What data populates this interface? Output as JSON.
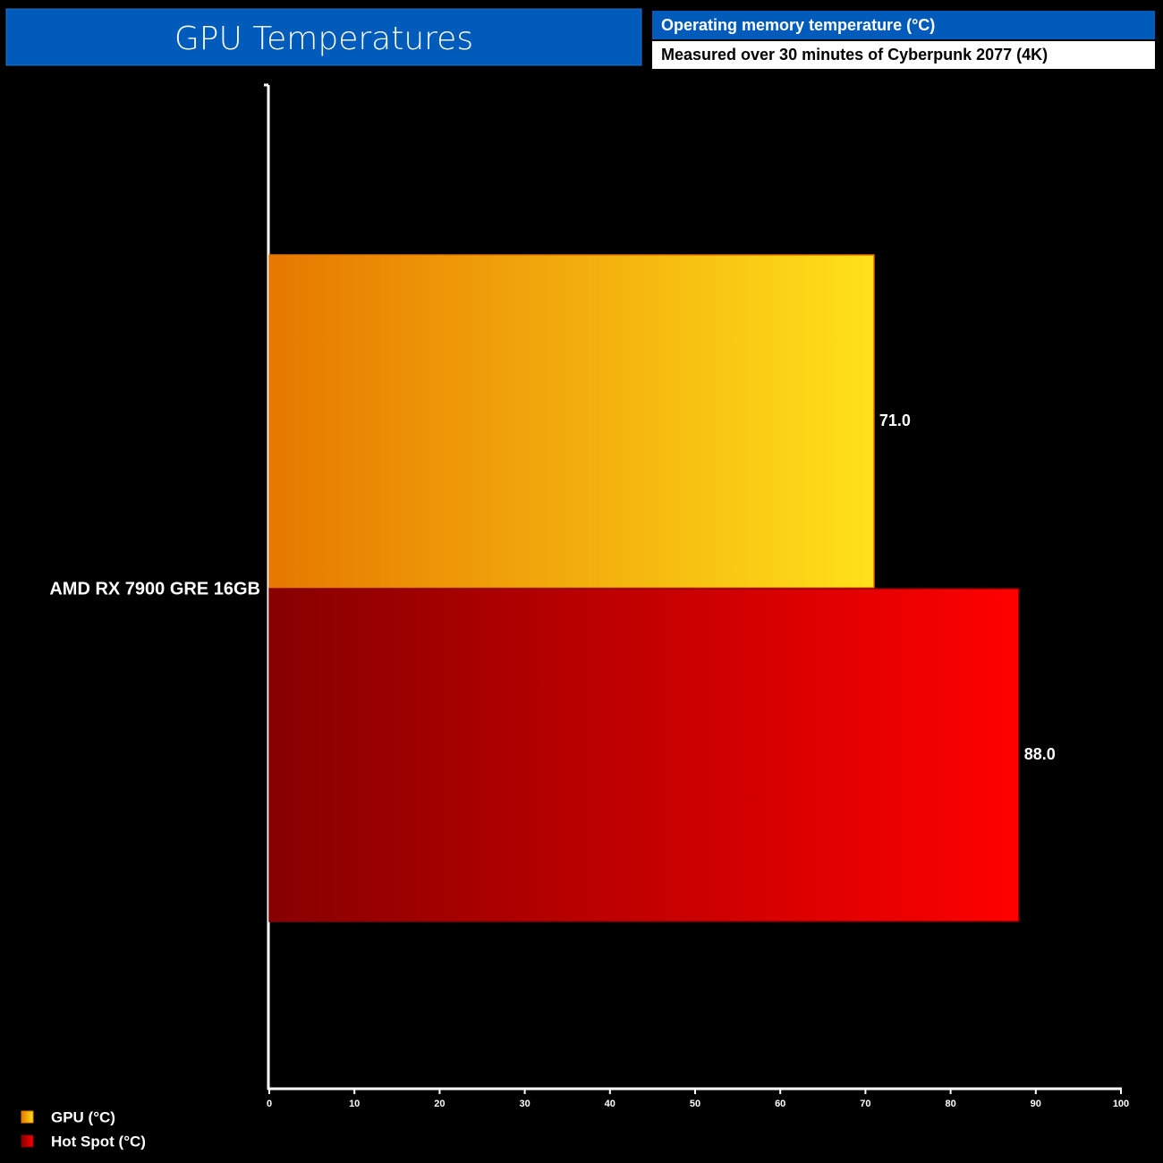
{
  "chart_data": {
    "type": "hbar",
    "title": "GPU Temperatures",
    "subtitle": "Operating memory temperature (°C)",
    "note": "Measured over 30 minutes of Cyberpunk 2077 (4K)",
    "categories": [
      "AMD RX 7900 GRE 16GB"
    ],
    "series": [
      {
        "name": "GPU (°C)",
        "color": [
          "#e67800",
          "#ffe11a"
        ],
        "values": [
          71
        ],
        "value_labels": [
          "71.0"
        ]
      },
      {
        "name": "Hot Spot (°C)",
        "color": [
          "#870000",
          "#ff0000"
        ],
        "values": [
          88
        ],
        "value_labels": [
          "88.0"
        ]
      }
    ],
    "xlim": [
      0,
      100
    ],
    "xticks": [
      0,
      10,
      20,
      30,
      40,
      50,
      60,
      70,
      80,
      90,
      100
    ],
    "legend": "bottom-left"
  }
}
